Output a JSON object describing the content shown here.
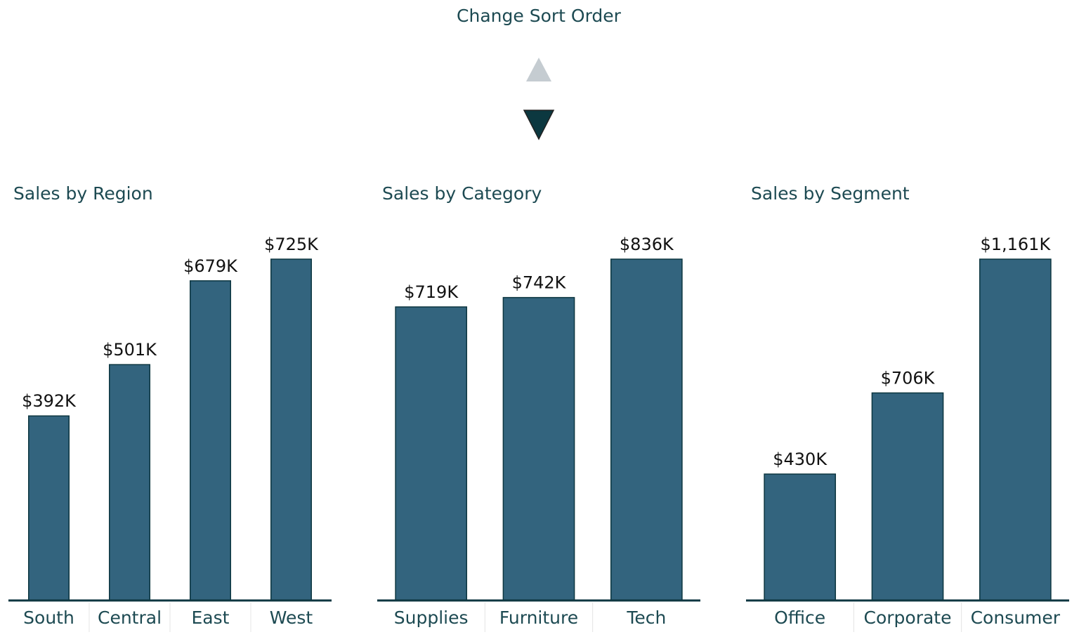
{
  "sort_control": {
    "label": "Change Sort Order"
  },
  "chart_data": [
    {
      "type": "bar",
      "title": "Sales by Region",
      "categories": [
        "South",
        "Central",
        "East",
        "West"
      ],
      "values": [
        392,
        501,
        679,
        725
      ],
      "value_labels": [
        "$392K",
        "$501K",
        "$679K",
        "$725K"
      ],
      "color": "#33647e",
      "ylim": [
        0,
        725
      ]
    },
    {
      "type": "bar",
      "title": "Sales by Category",
      "categories": [
        "Supplies",
        "Furniture",
        "Tech"
      ],
      "values": [
        719,
        742,
        836
      ],
      "value_labels": [
        "$719K",
        "$742K",
        "$836K"
      ],
      "color": "#33647e",
      "ylim": [
        0,
        836
      ]
    },
    {
      "type": "bar",
      "title": "Sales by Segment",
      "categories": [
        "Office",
        "Corporate",
        "Consumer"
      ],
      "values": [
        430,
        706,
        1161
      ],
      "value_labels": [
        "$430K",
        "$706K",
        "$1,161K"
      ],
      "color": "#33647e",
      "ylim": [
        0,
        1161
      ]
    }
  ]
}
